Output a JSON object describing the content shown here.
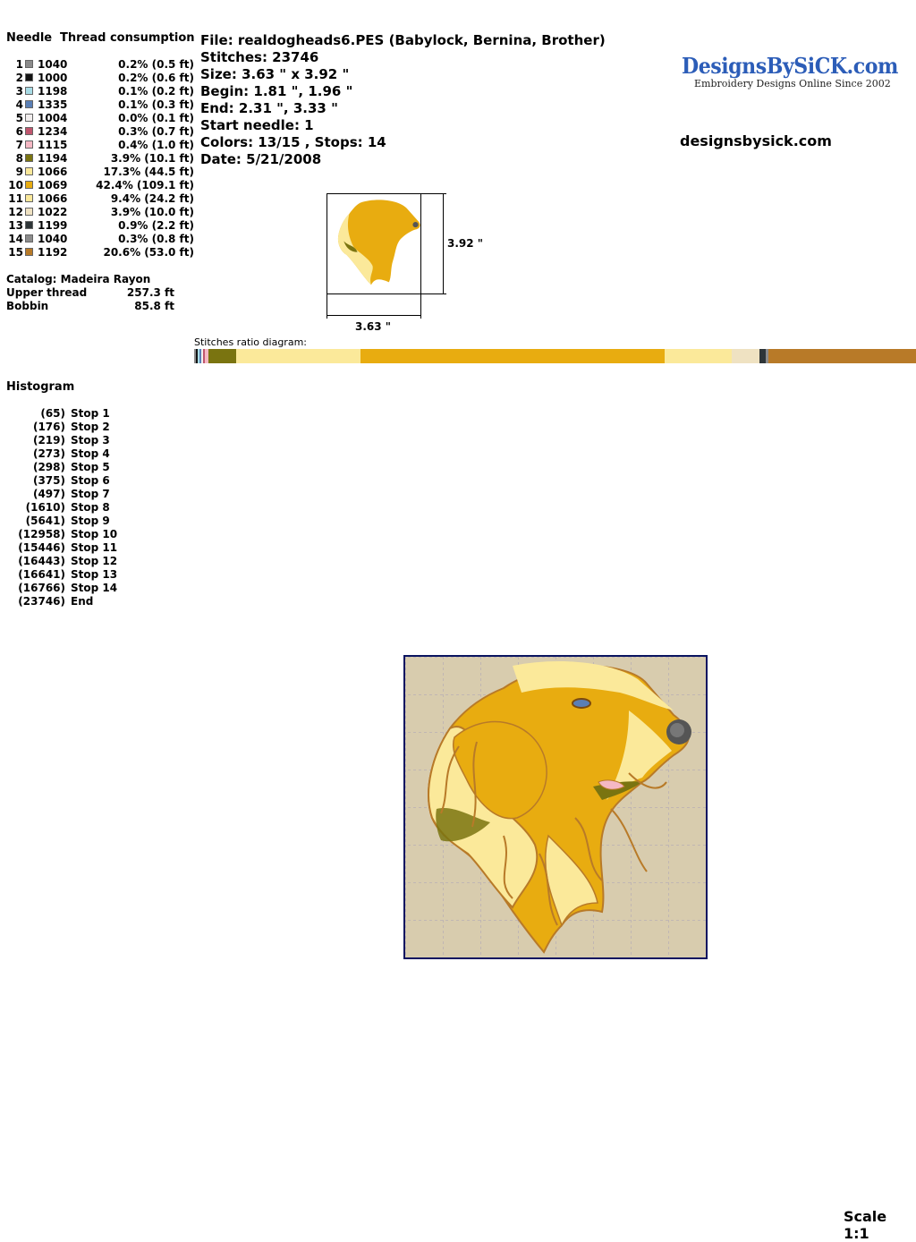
{
  "needles": {
    "header_needle": "Needle",
    "header_thread": "Thread consumption",
    "rows": [
      {
        "n": "1",
        "color": "#8c8c8c",
        "code": "1040",
        "cons": "0.2% (0.5 ft)"
      },
      {
        "n": "2",
        "color": "#141414",
        "code": "1000",
        "cons": "0.2% (0.6 ft)"
      },
      {
        "n": "3",
        "color": "#a8dce6",
        "code": "1198",
        "cons": "0.1% (0.2 ft)"
      },
      {
        "n": "4",
        "color": "#5a7fb5",
        "code": "1335",
        "cons": "0.1% (0.3 ft)"
      },
      {
        "n": "5",
        "color": "#f2eeee",
        "code": "1004",
        "cons": "0.0% (0.1 ft)"
      },
      {
        "n": "6",
        "color": "#c0566e",
        "code": "1234",
        "cons": "0.3% (0.7 ft)"
      },
      {
        "n": "7",
        "color": "#f5b8c4",
        "code": "1115",
        "cons": "0.4% (1.0 ft)"
      },
      {
        "n": "8",
        "color": "#7a7410",
        "code": "1194",
        "cons": "3.9% (10.1 ft)"
      },
      {
        "n": "9",
        "color": "#fbe99a",
        "code": "1066",
        "cons": "17.3% (44.5 ft)"
      },
      {
        "n": "10",
        "color": "#e8ac10",
        "code": "1069",
        "cons": "42.4% (109.1 ft)"
      },
      {
        "n": "11",
        "color": "#fbe99a",
        "code": "1066",
        "cons": "9.4% (24.2 ft)"
      },
      {
        "n": "12",
        "color": "#efe2c2",
        "code": "1022",
        "cons": "3.9% (10.0 ft)"
      },
      {
        "n": "13",
        "color": "#2e3538",
        "code": "1199",
        "cons": "0.9% (2.2 ft)"
      },
      {
        "n": "14",
        "color": "#8c8c8c",
        "code": "1040",
        "cons": "0.3% (0.8 ft)"
      },
      {
        "n": "15",
        "color": "#b87a28",
        "code": "1192",
        "cons": "20.6% (53.0 ft)"
      }
    ]
  },
  "catalog": {
    "line": "Catalog: Madeira Rayon",
    "upper_label": "Upper thread",
    "upper_value": "257.3 ft",
    "bobbin_label": "Bobbin",
    "bobbin_value": "85.8 ft"
  },
  "info": {
    "file": "File: realdogheads6.PES  (Babylock, Bernina, Brother)",
    "stitches": "Stitches: 23746",
    "size": "Size: 3.63 \" x 3.92 \"",
    "begin": "Begin: 1.81 \", 1.96 \"",
    "end": "End: 2.31 \", 3.33 \"",
    "start_needle": "Start needle: 1",
    "colors": "Colors: 13/15 , Stops: 14",
    "date": "Date: 5/21/2008"
  },
  "brand": {
    "logo_text": "DesignsBySiCK.com",
    "tagline": "Embroidery Designs Online Since 2002",
    "site": "designsbysick.com"
  },
  "thumb": {
    "height_label": "3.92 \"",
    "width_label": "3.63 \""
  },
  "ratio": {
    "label": "Stitches ratio diagram:",
    "segments": [
      {
        "color": "#8c8c8c",
        "pct": 0.2
      },
      {
        "color": "#141414",
        "pct": 0.2
      },
      {
        "color": "#a8dce6",
        "pct": 0.1
      },
      {
        "color": "#5a7fb5",
        "pct": 0.1
      },
      {
        "color": "#f2eeee",
        "pct": 0.1
      },
      {
        "color": "#c0566e",
        "pct": 0.3
      },
      {
        "color": "#f5b8c4",
        "pct": 0.4
      },
      {
        "color": "#7a7410",
        "pct": 3.9
      },
      {
        "color": "#fbe99a",
        "pct": 17.3
      },
      {
        "color": "#e8ac10",
        "pct": 42.4
      },
      {
        "color": "#fbe99a",
        "pct": 9.4
      },
      {
        "color": "#efe2c2",
        "pct": 3.9
      },
      {
        "color": "#2e3538",
        "pct": 0.9
      },
      {
        "color": "#8c8c8c",
        "pct": 0.3
      },
      {
        "color": "#b87a28",
        "pct": 20.6
      }
    ]
  },
  "histogram": {
    "title": "Histogram",
    "rows": [
      {
        "count": "(65)",
        "label": "Stop 1"
      },
      {
        "count": "(176)",
        "label": "Stop 2"
      },
      {
        "count": "(219)",
        "label": "Stop 3"
      },
      {
        "count": "(273)",
        "label": "Stop 4"
      },
      {
        "count": "(298)",
        "label": "Stop 5"
      },
      {
        "count": "(375)",
        "label": "Stop 6"
      },
      {
        "count": "(497)",
        "label": "Stop 7"
      },
      {
        "count": "(1610)",
        "label": "Stop 8"
      },
      {
        "count": "(5641)",
        "label": "Stop 9"
      },
      {
        "count": "(12958)",
        "label": "Stop 10"
      },
      {
        "count": "(15446)",
        "label": "Stop 11"
      },
      {
        "count": "(16443)",
        "label": "Stop 12"
      },
      {
        "count": "(16641)",
        "label": "Stop 13"
      },
      {
        "count": "(16766)",
        "label": "Stop 14"
      },
      {
        "count": "(23746)",
        "label": "End"
      }
    ]
  },
  "scale": "Scale 1:1"
}
